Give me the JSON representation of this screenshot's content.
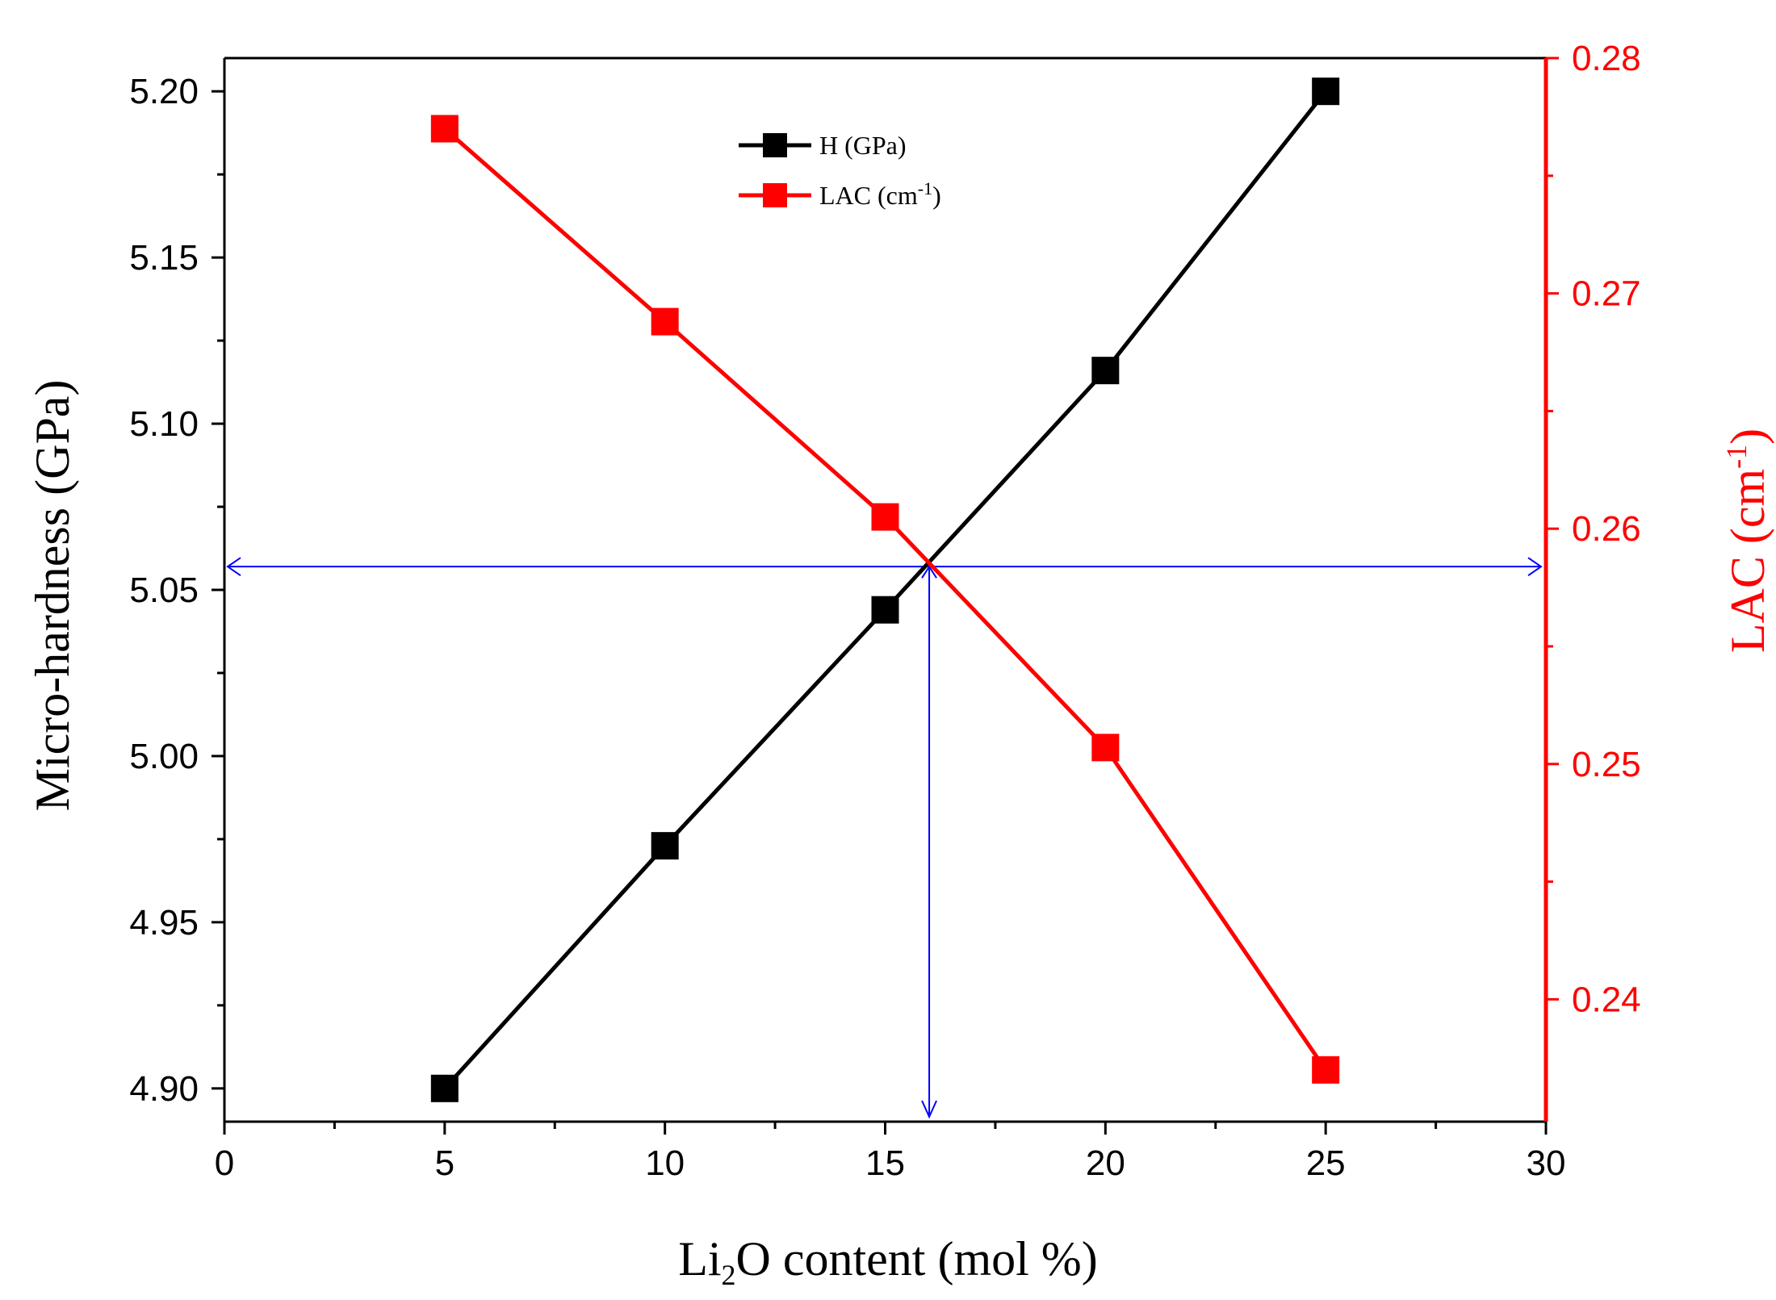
{
  "chart_data": {
    "type": "line",
    "x": [
      5,
      10,
      15,
      20,
      25
    ],
    "xlim": [
      0,
      30
    ],
    "xticks": [
      "0",
      "5",
      "10",
      "15",
      "20",
      "25",
      "30"
    ],
    "xlabel": {
      "pre": "Li",
      "sub": "2",
      "post": "O content (mol %)"
    },
    "left_axis": {
      "ylim": [
        4.89,
        5.21
      ],
      "ticks": [
        "4.90",
        "4.95",
        "5.00",
        "5.05",
        "5.10",
        "5.15",
        "5.20"
      ],
      "label": "Micro-hardness (GPa)",
      "color": "#000000"
    },
    "right_axis": {
      "ylim": [
        0.2348,
        0.28
      ],
      "ticks": [
        "0.24",
        "0.25",
        "0.26",
        "0.27",
        "0.28"
      ],
      "label_main": "LAC (cm",
      "label_sup": "-1",
      "label_end": ")",
      "color": "#ff0000"
    },
    "series": [
      {
        "name": "H (GPa)",
        "axis": "left",
        "color": "#000000",
        "values": [
          4.9,
          4.973,
          5.044,
          5.116,
          5.2
        ]
      },
      {
        "name": "LAC (cm-1)",
        "legend_main": "LAC (cm",
        "legend_sup": "-1",
        "legend_end": ")",
        "axis": "right",
        "color": "#ff0000",
        "values": [
          0.277,
          0.2688,
          0.2605,
          0.2507,
          0.237
        ]
      }
    ],
    "crossover": {
      "x": 16.0,
      "y_left": 5.057,
      "color": "#0000ff"
    },
    "legend_location": "top-center"
  }
}
